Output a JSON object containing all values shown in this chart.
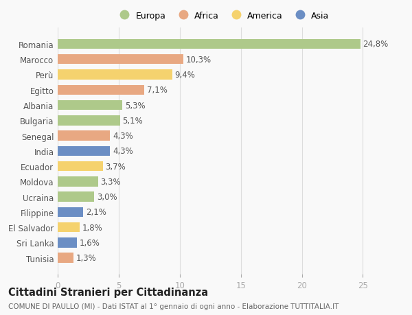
{
  "countries": [
    "Tunisia",
    "Sri Lanka",
    "El Salvador",
    "Filippine",
    "Ucraina",
    "Moldova",
    "Ecuador",
    "India",
    "Senegal",
    "Bulgaria",
    "Albania",
    "Egitto",
    "Perù",
    "Marocco",
    "Romania"
  ],
  "values": [
    1.3,
    1.6,
    1.8,
    2.1,
    3.0,
    3.3,
    3.7,
    4.3,
    4.3,
    5.1,
    5.3,
    7.1,
    9.4,
    10.3,
    24.8
  ],
  "labels": [
    "1,3%",
    "1,6%",
    "1,8%",
    "2,1%",
    "3,0%",
    "3,3%",
    "3,7%",
    "4,3%",
    "4,3%",
    "5,1%",
    "5,3%",
    "7,1%",
    "9,4%",
    "10,3%",
    "24,8%"
  ],
  "continents": [
    "Africa",
    "Asia",
    "America",
    "Asia",
    "Europa",
    "Europa",
    "America",
    "Asia",
    "Africa",
    "Europa",
    "Europa",
    "Africa",
    "America",
    "Africa",
    "Europa"
  ],
  "continent_colors": {
    "Europa": "#aec98a",
    "Africa": "#e8a882",
    "America": "#f5d26e",
    "Asia": "#6b8ec4"
  },
  "legend_order": [
    "Europa",
    "Africa",
    "America",
    "Asia"
  ],
  "title": "Cittadini Stranieri per Cittadinanza",
  "subtitle": "COMUNE DI PAULLO (MI) - Dati ISTAT al 1° gennaio di ogni anno - Elaborazione TUTTITALIA.IT",
  "xlim": [
    0,
    27
  ],
  "xticks": [
    0,
    5,
    10,
    15,
    20,
    25
  ],
  "background_color": "#f9f9f9",
  "bar_height": 0.65,
  "label_fontsize": 8.5,
  "tick_fontsize": 8.5,
  "title_fontsize": 10.5,
  "subtitle_fontsize": 7.5
}
